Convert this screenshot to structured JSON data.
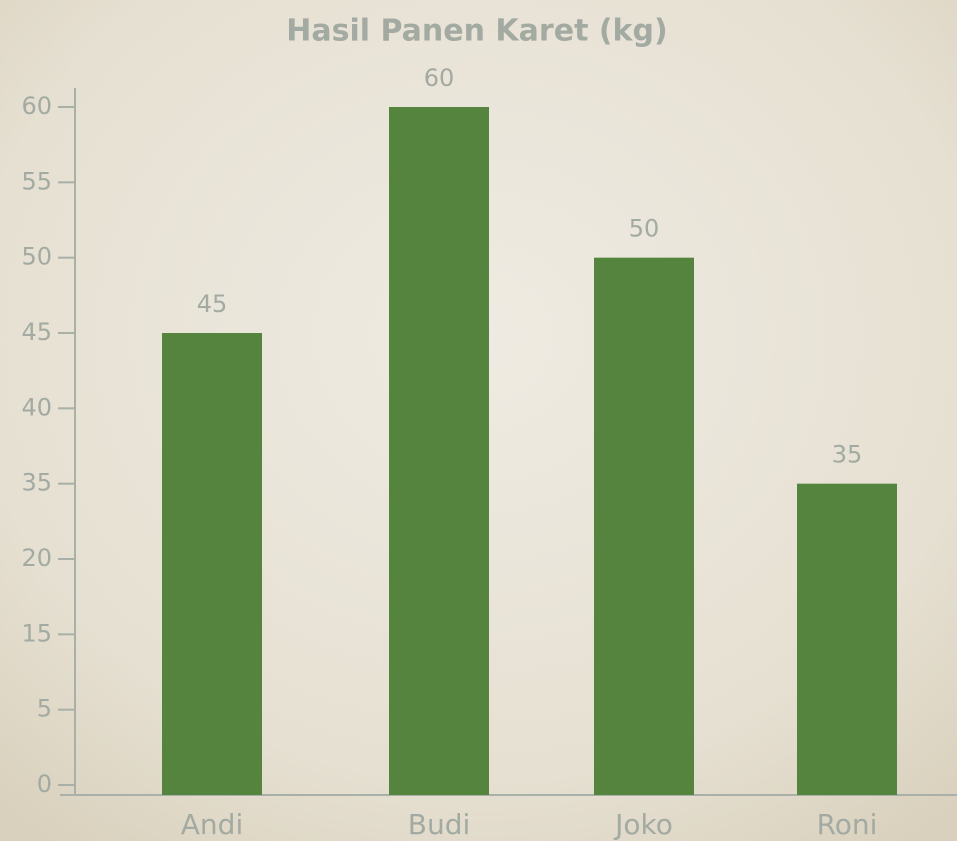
{
  "chart_data": {
    "type": "bar",
    "title": "Hasil Panen Karet (kg)",
    "categories": [
      "Andi",
      "Budi",
      "Joko",
      "Roni"
    ],
    "values": [
      45,
      60,
      50,
      35
    ],
    "color": "#55843f",
    "ylim": [
      0,
      60
    ],
    "yticks": [
      0,
      5,
      15,
      20,
      35,
      40,
      45,
      50,
      55,
      60
    ],
    "grid": false
  }
}
